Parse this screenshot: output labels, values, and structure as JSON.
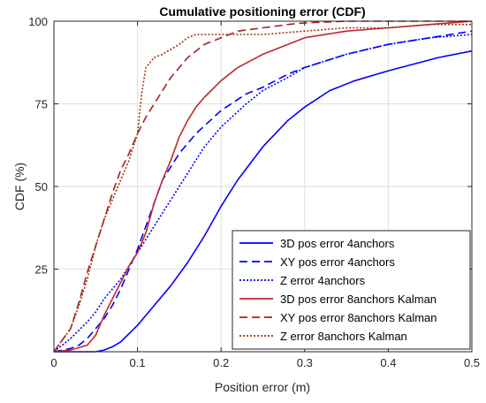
{
  "chart_data": {
    "type": "line",
    "title": "Cumulative positioning error (CDF)",
    "xlabel": "Position error (m)",
    "ylabel": "CDF (%)",
    "xlim": [
      0,
      0.5
    ],
    "ylim": [
      0,
      100
    ],
    "xticks": [
      0,
      0.1,
      0.2,
      0.3,
      0.4,
      0.5
    ],
    "xtick_labels": [
      "0",
      "0.1",
      "0.2",
      "0.3",
      "0.4",
      "0.5"
    ],
    "yticks": [
      25,
      50,
      75,
      100
    ],
    "ytick_labels": [
      "25",
      "50",
      "75",
      "100"
    ],
    "grid": true,
    "legend_position": "bottom-right",
    "series": [
      {
        "name": "3D pos error 4anchors",
        "color": "#0000ff",
        "dash": "solid",
        "x": [
          0,
          0.05,
          0.06,
          0.07,
          0.08,
          0.1,
          0.12,
          0.14,
          0.16,
          0.18,
          0.2,
          0.22,
          0.25,
          0.28,
          0.3,
          0.33,
          0.36,
          0.4,
          0.43,
          0.46,
          0.5
        ],
        "y": [
          0,
          0,
          0.5,
          1.5,
          3,
          8,
          14,
          20,
          27,
          35,
          44,
          52,
          62,
          70,
          74,
          79,
          82,
          85,
          87,
          89,
          91
        ]
      },
      {
        "name": "XY pos error 4anchors",
        "color": "#0000ff",
        "dash": "dashed",
        "x": [
          0,
          0.01,
          0.02,
          0.03,
          0.04,
          0.05,
          0.06,
          0.07,
          0.08,
          0.09,
          0.1,
          0.11,
          0.12,
          0.13,
          0.15,
          0.17,
          0.2,
          0.23,
          0.25,
          0.28,
          0.3,
          0.35,
          0.4,
          0.45,
          0.5
        ],
        "y": [
          0,
          0.5,
          1,
          2,
          4,
          7,
          10,
          14,
          19,
          25,
          31,
          38,
          45,
          52,
          60,
          66,
          73,
          78,
          80,
          84,
          86,
          90,
          93,
          95,
          97
        ]
      },
      {
        "name": "Z error 4anchors",
        "color": "#0000ff",
        "dash": "dotted",
        "x": [
          0,
          0.02,
          0.04,
          0.05,
          0.06,
          0.08,
          0.1,
          0.12,
          0.14,
          0.16,
          0.18,
          0.2,
          0.23,
          0.25,
          0.28,
          0.3,
          0.35,
          0.4,
          0.45,
          0.5
        ],
        "y": [
          0,
          4,
          9,
          12,
          16,
          22,
          30,
          38,
          46,
          54,
          62,
          68,
          75,
          79,
          83,
          86,
          90,
          93,
          95,
          96
        ]
      },
      {
        "name": "3D pos error 8anchors Kalman",
        "color": "#c0262e",
        "dash": "solid",
        "x": [
          0,
          0.02,
          0.04,
          0.05,
          0.06,
          0.07,
          0.08,
          0.09,
          0.1,
          0.11,
          0.12,
          0.13,
          0.14,
          0.15,
          0.16,
          0.17,
          0.18,
          0.2,
          0.22,
          0.25,
          0.28,
          0.3,
          0.35,
          0.4,
          0.45,
          0.5
        ],
        "y": [
          0,
          0.5,
          2,
          5,
          11,
          16,
          21,
          26,
          30,
          36,
          45,
          52,
          58,
          65,
          70,
          74,
          77,
          82,
          86,
          90,
          93,
          95,
          97,
          98,
          99,
          100
        ]
      },
      {
        "name": "XY pos error 8anchors Kalman",
        "color": "#a8201e",
        "dash": "dashed",
        "x": [
          0,
          0.02,
          0.03,
          0.04,
          0.05,
          0.06,
          0.07,
          0.08,
          0.09,
          0.1,
          0.11,
          0.12,
          0.13,
          0.14,
          0.15,
          0.16,
          0.17,
          0.18,
          0.2,
          0.22,
          0.25,
          0.28,
          0.3,
          0.35,
          0.4,
          0.5
        ],
        "y": [
          0,
          7,
          15,
          24,
          32,
          40,
          48,
          55,
          60,
          66,
          71,
          75,
          79,
          83,
          86,
          89,
          91,
          93,
          95,
          97,
          98,
          99,
          99.5,
          100,
          100,
          100
        ]
      },
      {
        "name": "Z error 8anchors Kalman",
        "color": "#a03210",
        "dash": "dotted",
        "x": [
          0,
          0.02,
          0.03,
          0.04,
          0.05,
          0.06,
          0.07,
          0.08,
          0.09,
          0.1,
          0.105,
          0.11,
          0.12,
          0.13,
          0.15,
          0.16,
          0.17,
          0.2,
          0.25,
          0.3,
          0.35,
          0.4,
          0.45,
          0.5
        ],
        "y": [
          0,
          7,
          14,
          22,
          32,
          40,
          46,
          52,
          58,
          66,
          78,
          86,
          89,
          90,
          93,
          95,
          96,
          96,
          96,
          97,
          98,
          98,
          99,
          99
        ]
      }
    ]
  }
}
